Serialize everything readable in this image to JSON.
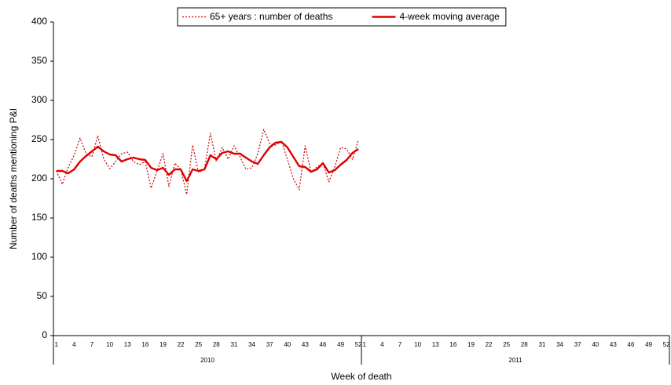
{
  "chart_data": {
    "type": "line",
    "x_label": "Week of death",
    "y_label": "Number of deaths mentioning P&I",
    "categories": [
      "1",
      null,
      null,
      "4",
      null,
      null,
      "7",
      null,
      null,
      "10",
      null,
      null,
      "13",
      null,
      null,
      "16",
      null,
      null,
      "19",
      null,
      null,
      "22",
      null,
      null,
      "25",
      null,
      null,
      "28",
      null,
      null,
      "31",
      null,
      null,
      "34",
      null,
      null,
      "37",
      null,
      null,
      "40",
      null,
      null,
      "43",
      null,
      null,
      "46",
      null,
      null,
      "49",
      null,
      null,
      "52",
      "1",
      null,
      null,
      "4",
      null,
      null,
      "7",
      null,
      null,
      "10",
      null,
      null,
      "13",
      null,
      null,
      "16",
      null,
      null,
      "19",
      null,
      null,
      "22",
      null,
      null,
      "25",
      null,
      null,
      "28",
      null,
      null,
      "31",
      null,
      null,
      "34",
      null,
      null,
      "37",
      null,
      null,
      "40",
      null,
      null,
      "43",
      null,
      null,
      "46",
      null,
      null,
      "49",
      null,
      null,
      "52"
    ],
    "x_groups": [
      "2010",
      "2011"
    ],
    "series": [
      {
        "name": "65+ years : number of deaths",
        "color": "#cc0000",
        "style": "dotted",
        "values": [
          210,
          193,
          215,
          230,
          252,
          232,
          228,
          255,
          225,
          213,
          222,
          232,
          234,
          222,
          218,
          222,
          188,
          210,
          232,
          190,
          220,
          212,
          180,
          243,
          208,
          212,
          258,
          222,
          240,
          225,
          242,
          228,
          212,
          214,
          232,
          263,
          245,
          243,
          248,
          225,
          200,
          186,
          242,
          208,
          215,
          220,
          196,
          215,
          240,
          238,
          225,
          250,
          null,
          null,
          null,
          null,
          null,
          null,
          null,
          null,
          null,
          null,
          null,
          null,
          null,
          null,
          null,
          null,
          null,
          null,
          null,
          null,
          null,
          null,
          null,
          null,
          null,
          null,
          null,
          null,
          null,
          null,
          null,
          null,
          null,
          null,
          null,
          null,
          null,
          null,
          null,
          null,
          null,
          null,
          null,
          null,
          null,
          null,
          null,
          null,
          null,
          null,
          null,
          null
        ]
      },
      {
        "name": "4-week moving average",
        "color": "#e00000",
        "style": "solid",
        "values": [
          210,
          210,
          207,
          212,
          222,
          229,
          235,
          241,
          235,
          231,
          230,
          222,
          225,
          227,
          225,
          224,
          214,
          211,
          214,
          205,
          212,
          212,
          197,
          212,
          210,
          212,
          230,
          225,
          233,
          235,
          232,
          232,
          227,
          222,
          219,
          230,
          240,
          246,
          247,
          240,
          228,
          216,
          215,
          209,
          212,
          220,
          208,
          211,
          218,
          224,
          233,
          238,
          null,
          null,
          null,
          null,
          null,
          null,
          null,
          null,
          null,
          null,
          null,
          null,
          null,
          null,
          null,
          null,
          null,
          null,
          null,
          null,
          null,
          null,
          null,
          null,
          null,
          null,
          null,
          null,
          null,
          null,
          null,
          null,
          null,
          null,
          null,
          null,
          null,
          null,
          null,
          null,
          null,
          null,
          null,
          null,
          null,
          null,
          null,
          null,
          null,
          null,
          null,
          null
        ]
      }
    ],
    "ylim": [
      0,
      400
    ],
    "yticks": [
      0,
      50,
      100,
      150,
      200,
      250,
      300,
      350,
      400
    ],
    "grid": false,
    "legend_position": "top"
  }
}
